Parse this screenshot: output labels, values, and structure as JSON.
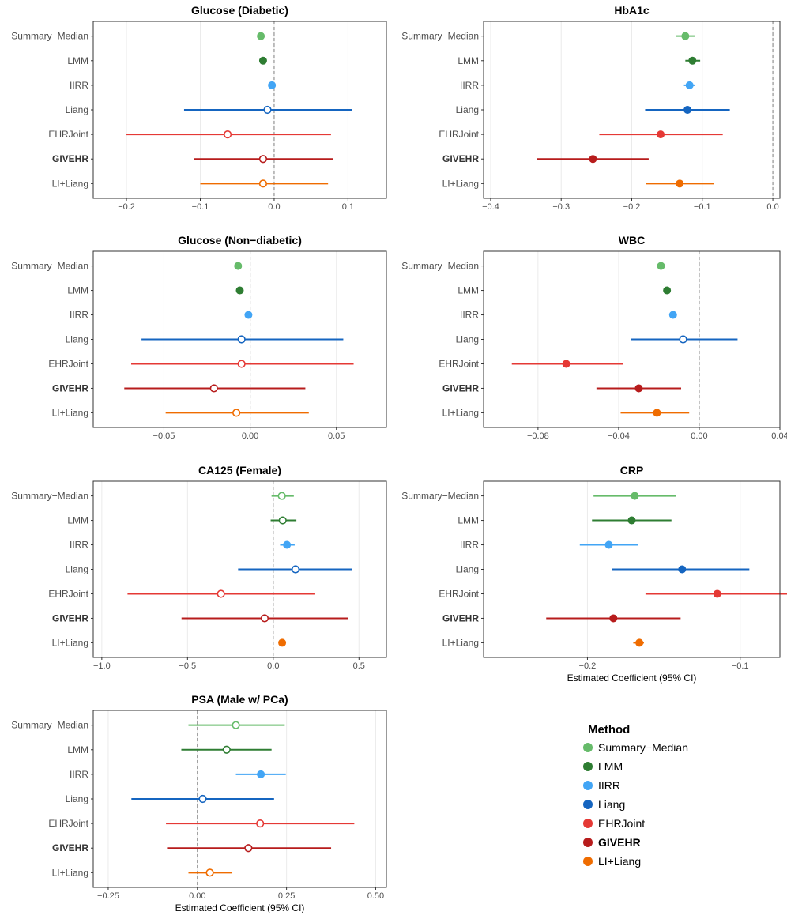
{
  "colors": {
    "Summary-Median": "#66bb6a",
    "LMM": "#2e7d32",
    "IIRR": "#42a5f5",
    "Liang": "#1565c0",
    "EHRJoint": "#e53935",
    "GIVEHR": "#b71c1c",
    "LI+Liang": "#ef6c00"
  },
  "legend": {
    "title": "Method",
    "items": [
      "Summary−Median",
      "LMM",
      "IIRR",
      "Liang",
      "EHRJoint",
      "GIVEHR",
      "LI+Liang"
    ],
    "keys": [
      "Summary-Median",
      "LMM",
      "IIRR",
      "Liang",
      "EHRJoint",
      "GIVEHR",
      "LI+Liang"
    ],
    "bold": "GIVEHR"
  },
  "chart_data": [
    {
      "type": "forest",
      "title": "Glucose (Diabetic)",
      "xlabel": "",
      "xlim": [
        -0.245,
        0.152
      ],
      "xticks": [
        -0.2,
        -0.1,
        0.0,
        0.1
      ],
      "xticklabels": [
        "−0.2",
        "−0.1",
        "0.0",
        "0.1"
      ],
      "methods": [
        "Summary−Median",
        "LMM",
        "IIRR",
        "Liang",
        "EHRJoint",
        "GIVEHR",
        "LI+Liang"
      ],
      "estimates": [
        -0.018,
        -0.015,
        -0.003,
        -0.009,
        -0.063,
        -0.015,
        -0.015
      ],
      "lower": [
        null,
        null,
        null,
        -0.122,
        -0.2,
        -0.109,
        -0.1
      ],
      "upper": [
        null,
        null,
        null,
        0.105,
        0.077,
        0.08,
        0.073
      ],
      "filled": [
        true,
        true,
        true,
        false,
        false,
        false,
        false
      ]
    },
    {
      "type": "forest",
      "title": "HbA1c",
      "xlabel": "",
      "xlim": [
        -0.41,
        0.01
      ],
      "xticks": [
        -0.4,
        -0.3,
        -0.2,
        -0.1,
        0.0
      ],
      "xticklabels": [
        "−0.4",
        "−0.3",
        "−0.2",
        "−0.1",
        "0.0"
      ],
      "methods": [
        "Summary−Median",
        "LMM",
        "IIRR",
        "Liang",
        "EHRJoint",
        "GIVEHR",
        "LI+Liang"
      ],
      "estimates": [
        -0.124,
        -0.114,
        -0.118,
        -0.121,
        -0.159,
        -0.255,
        -0.132
      ],
      "lower": [
        -0.137,
        -0.124,
        -0.126,
        -0.181,
        -0.246,
        -0.334,
        -0.18
      ],
      "upper": [
        -0.111,
        -0.103,
        -0.11,
        -0.061,
        -0.071,
        -0.176,
        -0.084
      ],
      "filled": [
        true,
        true,
        true,
        true,
        true,
        true,
        true
      ]
    },
    {
      "type": "forest",
      "title": "Glucose (Non−diabetic)",
      "xlabel": "",
      "xlim": [
        -0.091,
        0.079
      ],
      "xticks": [
        -0.05,
        0.0,
        0.05
      ],
      "xticklabels": [
        "−0.05",
        "0.00",
        "0.05"
      ],
      "methods": [
        "Summary−Median",
        "LMM",
        "IIRR",
        "Liang",
        "EHRJoint",
        "GIVEHR",
        "LI+Liang"
      ],
      "estimates": [
        -0.007,
        -0.006,
        -0.001,
        -0.005,
        -0.005,
        -0.021,
        -0.008
      ],
      "lower": [
        null,
        null,
        null,
        -0.063,
        -0.069,
        -0.073,
        -0.049
      ],
      "upper": [
        null,
        null,
        null,
        0.054,
        0.06,
        0.032,
        0.034
      ],
      "filled": [
        true,
        true,
        true,
        false,
        false,
        false,
        false
      ]
    },
    {
      "type": "forest",
      "title": "WBC",
      "xlabel": "",
      "xlim": [
        -0.107,
        0.04
      ],
      "xticks": [
        -0.08,
        -0.04,
        0.0,
        0.04
      ],
      "xticklabels": [
        "−0.08",
        "−0.04",
        "0.00",
        "0.04"
      ],
      "methods": [
        "Summary−Median",
        "LMM",
        "IIRR",
        "Liang",
        "EHRJoint",
        "GIVEHR",
        "LI+Liang"
      ],
      "estimates": [
        -0.019,
        -0.016,
        -0.013,
        -0.008,
        -0.066,
        -0.03,
        -0.021
      ],
      "lower": [
        null,
        null,
        null,
        -0.034,
        -0.093,
        -0.051,
        -0.039
      ],
      "upper": [
        null,
        null,
        null,
        0.019,
        -0.038,
        -0.009,
        -0.005
      ],
      "filled": [
        true,
        true,
        true,
        false,
        true,
        true,
        true
      ]
    },
    {
      "type": "forest",
      "title": "CA125 (Female)",
      "xlabel": "",
      "xlim": [
        -1.05,
        0.66
      ],
      "xticks": [
        -1.0,
        -0.5,
        0.0,
        0.5
      ],
      "xticklabels": [
        "−1.0",
        "−0.5",
        "0.0",
        "0.5"
      ],
      "methods": [
        "Summary−Median",
        "LMM",
        "IIRR",
        "Liang",
        "EHRJoint",
        "GIVEHR",
        "LI+Liang"
      ],
      "estimates": [
        0.05,
        0.055,
        0.08,
        0.13,
        -0.305,
        -0.05,
        0.052
      ],
      "lower": [
        -0.01,
        -0.015,
        0.04,
        -0.205,
        -0.85,
        -0.535,
        0.035
      ],
      "upper": [
        0.12,
        0.135,
        0.125,
        0.46,
        0.245,
        0.435,
        0.07
      ],
      "filled": [
        false,
        false,
        true,
        false,
        false,
        false,
        true
      ]
    },
    {
      "type": "forest",
      "title": "CRP",
      "xlabel": "Estimated Coefficient (95% CI)",
      "xlim": [
        -0.268,
        -0.074
      ],
      "xticks": [
        -0.2,
        -0.1
      ],
      "xticklabels": [
        "−0.2",
        "−0.1"
      ],
      "methods": [
        "Summary−Median",
        "LMM",
        "IIRR",
        "Liang",
        "EHRJoint",
        "GIVEHR",
        "LI+Liang"
      ],
      "estimates": [
        -0.169,
        -0.171,
        -0.186,
        -0.138,
        -0.115,
        -0.183,
        -0.166
      ],
      "lower": [
        -0.196,
        -0.197,
        -0.205,
        -0.184,
        -0.162,
        -0.227,
        -0.17
      ],
      "upper": [
        -0.142,
        -0.145,
        -0.167,
        -0.094,
        -0.068,
        -0.139,
        -0.163
      ],
      "filled": [
        true,
        true,
        true,
        true,
        true,
        true,
        true
      ]
    },
    {
      "type": "forest",
      "title": "PSA (Male w/ PCa)",
      "xlabel": "Estimated Coefficient (95% CI)",
      "xlim": [
        -0.292,
        0.53
      ],
      "xticks": [
        -0.25,
        0.0,
        0.25,
        0.5
      ],
      "xticklabels": [
        "−0.25",
        "0.00",
        "0.25",
        "0.50"
      ],
      "methods": [
        "Summary−Median",
        "LMM",
        "IIRR",
        "Liang",
        "EHRJoint",
        "GIVEHR",
        "LI+Liang"
      ],
      "estimates": [
        0.108,
        0.082,
        0.178,
        0.015,
        0.176,
        0.143,
        0.035
      ],
      "lower": [
        -0.025,
        -0.045,
        0.108,
        -0.185,
        -0.088,
        -0.085,
        -0.025
      ],
      "upper": [
        0.245,
        0.208,
        0.248,
        0.215,
        0.44,
        0.375,
        0.098
      ],
      "filled": [
        false,
        false,
        true,
        false,
        false,
        false,
        false
      ]
    }
  ]
}
